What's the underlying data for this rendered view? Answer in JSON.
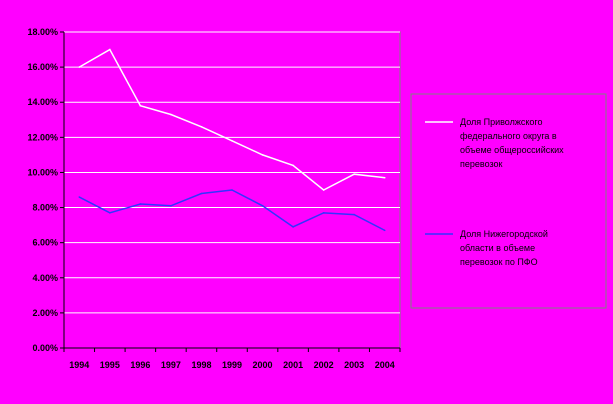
{
  "chart_data": {
    "type": "line",
    "categories": [
      "1994",
      "1995",
      "1996",
      "1997",
      "1998",
      "1999",
      "2000",
      "2001",
      "2002",
      "2003",
      "2004"
    ],
    "y_tick_labels": [
      "0.00%",
      "2.00%",
      "4.00%",
      "6.00%",
      "8.00%",
      "10.00%",
      "12.00%",
      "14.00%",
      "16.00%",
      "18.00%"
    ],
    "ylim": [
      0,
      18
    ],
    "grid": true,
    "legend_position": "right",
    "series": [
      {
        "name": "Доля Приволжского федерального округа в объеме общероссийских перевозок",
        "name_lines": [
          "Доля Приволжского",
          "федерального округа в",
          "объеме общероссийских",
          "перевозок"
        ],
        "color": "#ffffff",
        "values": [
          16.0,
          17.0,
          13.8,
          13.3,
          12.6,
          11.8,
          11.0,
          10.4,
          9.0,
          9.9,
          9.7
        ]
      },
      {
        "name": "Доля Нижегородской области в объеме перевозок по ПФО",
        "name_lines": [
          "Доля Нижегородской",
          "области в объеме",
          "перевозок по ПФО"
        ],
        "color": "#3333ff",
        "values": [
          8.6,
          7.7,
          8.2,
          8.1,
          8.8,
          9.0,
          8.1,
          6.9,
          7.7,
          7.6,
          6.7
        ]
      }
    ],
    "colors": {
      "background": "#ff00ff",
      "gridline": "#ffffff",
      "axis": "#000000"
    }
  }
}
